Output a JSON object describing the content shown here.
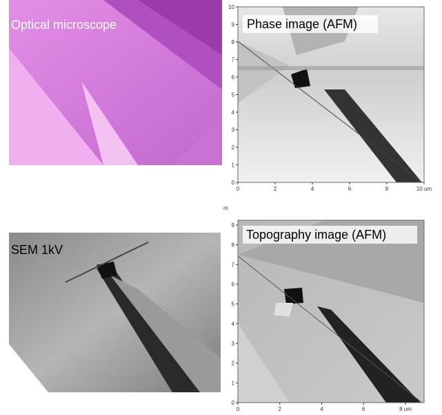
{
  "panels": [
    {
      "label": "Optical microscope"
    },
    {
      "label": "Phase image (AFM)",
      "yticks": [
        0,
        1,
        2,
        3,
        4,
        5,
        6,
        7,
        8,
        9,
        10
      ],
      "xticks": [
        0,
        2,
        4,
        6,
        8,
        "10 um"
      ]
    },
    {
      "label": "SEM 1kV"
    },
    {
      "label": "Topography image (AFM)",
      "yticks": [
        0,
        1,
        2,
        3,
        4,
        5,
        6,
        7,
        8,
        9
      ],
      "xticks": [
        0,
        2,
        4,
        6,
        "8 um"
      ]
    }
  ],
  "stray_label": "m"
}
